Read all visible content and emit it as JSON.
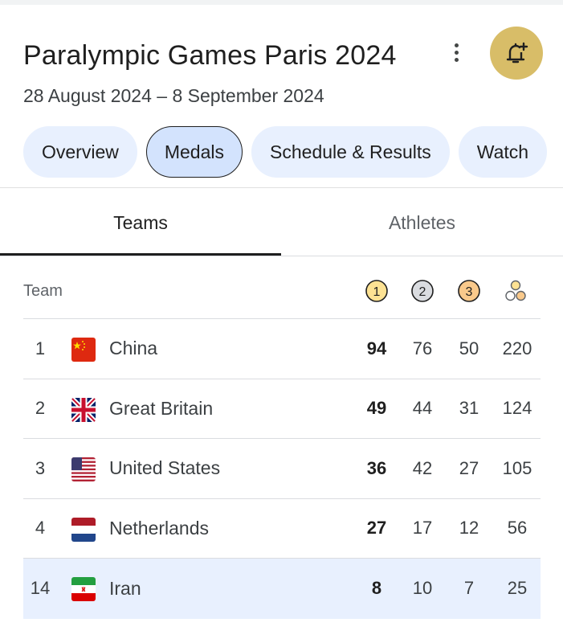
{
  "header": {
    "title": "Paralympic Games Paris 2024",
    "dates": "28 August 2024 – 8 September 2024"
  },
  "actions": {
    "more_icon": "more-vert-icon",
    "bell_icon": "bell-plus-icon",
    "bell_color": "#d8bd68"
  },
  "chips": [
    {
      "label": "Overview",
      "active": false
    },
    {
      "label": "Medals",
      "active": true
    },
    {
      "label": "Schedule & Results",
      "active": false
    },
    {
      "label": "Watch",
      "active": false
    }
  ],
  "subtabs": [
    {
      "label": "Teams",
      "selected": true
    },
    {
      "label": "Athletes",
      "selected": false
    }
  ],
  "table": {
    "team_header": "Team",
    "medal_headers": [
      {
        "icon": "gold-medal-icon",
        "label": "1",
        "color": "#fde293"
      },
      {
        "icon": "silver-medal-icon",
        "label": "2",
        "color": "#dadce0"
      },
      {
        "icon": "bronze-medal-icon",
        "label": "3",
        "color": "#f9c98b"
      },
      {
        "icon": "total-medals-icon",
        "color": "#fde293"
      }
    ],
    "rows": [
      {
        "rank": "1",
        "country": "China",
        "flag": "china-flag-icon",
        "gold": "94",
        "silver": "76",
        "bronze": "50",
        "total": "220",
        "highlight": false
      },
      {
        "rank": "2",
        "country": "Great Britain",
        "flag": "great-britain-flag-icon",
        "gold": "49",
        "silver": "44",
        "bronze": "31",
        "total": "124",
        "highlight": false
      },
      {
        "rank": "3",
        "country": "United States",
        "flag": "united-states-flag-icon",
        "gold": "36",
        "silver": "42",
        "bronze": "27",
        "total": "105",
        "highlight": false
      },
      {
        "rank": "4",
        "country": "Netherlands",
        "flag": "netherlands-flag-icon",
        "gold": "27",
        "silver": "17",
        "bronze": "12",
        "total": "56",
        "highlight": false
      },
      {
        "rank": "14",
        "country": "Iran",
        "flag": "iran-flag-icon",
        "gold": "8",
        "silver": "10",
        "bronze": "7",
        "total": "25",
        "highlight": true
      }
    ]
  }
}
